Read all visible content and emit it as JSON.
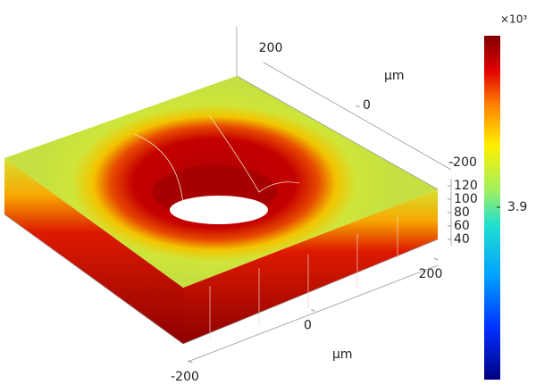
{
  "chart_data": {
    "type": "surface3d",
    "xlabel": "μm",
    "ylabel": "μm",
    "xlim": [
      -200,
      200
    ],
    "xticks": [
      -200,
      0,
      200
    ],
    "ylim": [
      -200,
      200
    ],
    "yticks": [
      -200,
      0,
      200
    ],
    "zlim": [
      40,
      120
    ],
    "zticks": [
      40,
      60,
      80,
      100,
      120
    ],
    "colorbar": {
      "multiplier": "×10³",
      "ticks": [
        3.9
      ]
    }
  }
}
